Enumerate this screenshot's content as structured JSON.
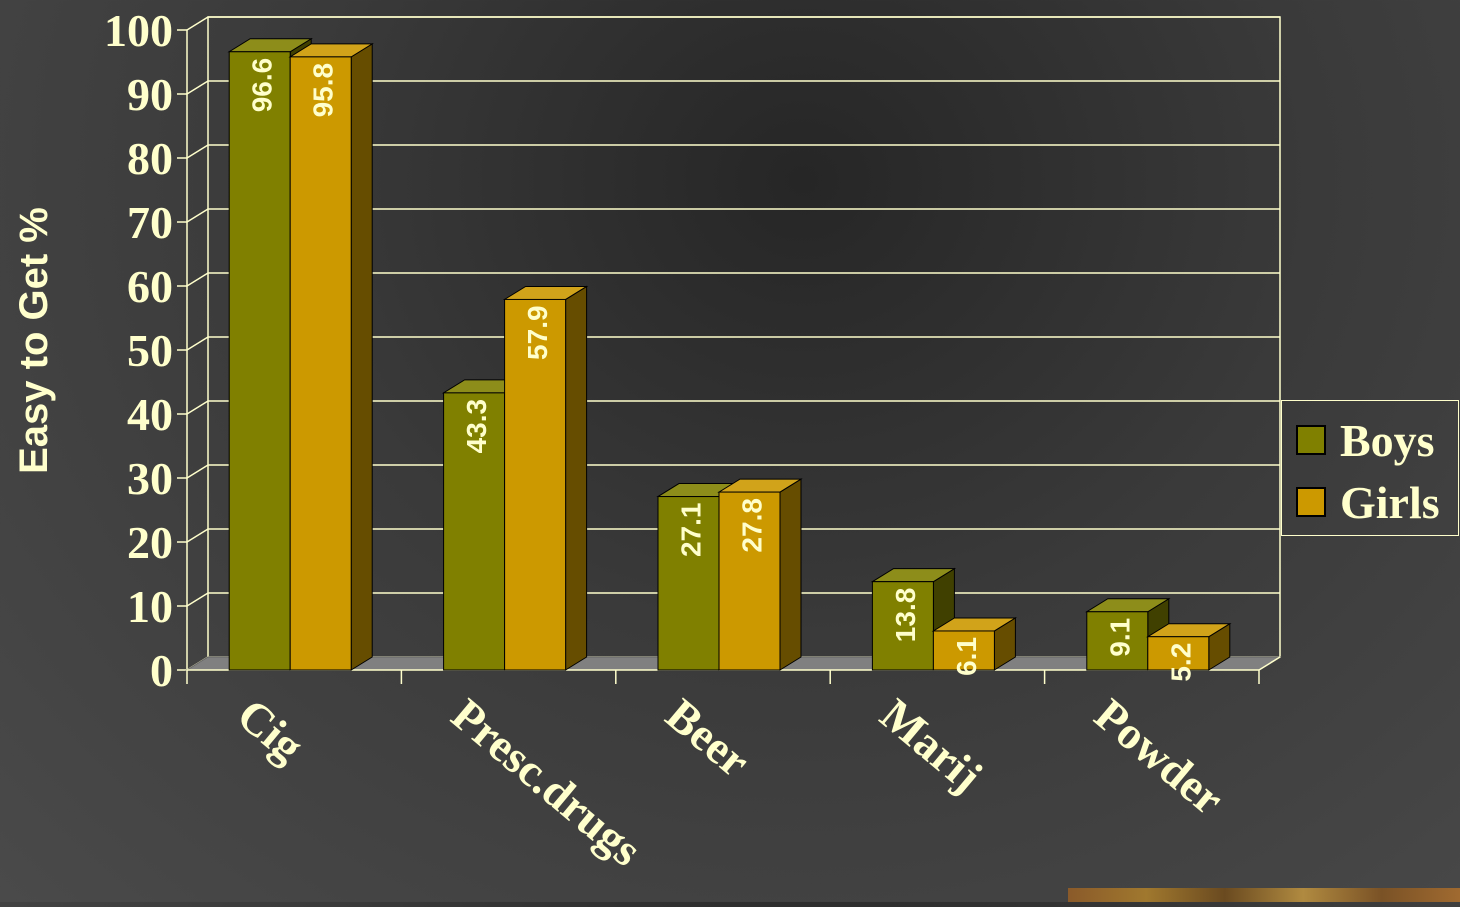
{
  "chart_data": {
    "type": "bar",
    "title": "",
    "xlabel": "",
    "ylabel": "Easy to Get %",
    "ylim": [
      0,
      100
    ],
    "yticks": [
      "0",
      "10",
      "20",
      "30",
      "40",
      "50",
      "60",
      "70",
      "80",
      "90",
      "100"
    ],
    "categories": [
      "Cig",
      "Presc.drugs",
      "Beer",
      "Marij",
      "Powder"
    ],
    "series": [
      {
        "name": "Boys",
        "values": [
          96.6,
          43.3,
          27.1,
          13.8,
          9.1
        ],
        "labels": [
          "96.6",
          "43.3",
          "27.1",
          "13.8",
          "9.1"
        ],
        "color": "#808000"
      },
      {
        "name": "Girls",
        "values": [
          95.8,
          57.9,
          27.8,
          6.1,
          5.2
        ],
        "labels": [
          "95.8",
          "57.9",
          "27.8",
          "6.1",
          "5.2"
        ],
        "color": "#CC9900"
      }
    ],
    "grid": true,
    "legend": "right"
  }
}
